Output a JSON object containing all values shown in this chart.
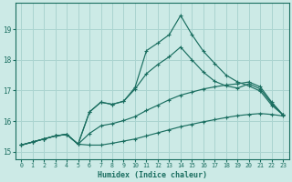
{
  "xlabel": "Humidex (Indice chaleur)",
  "xlim": [
    -0.5,
    23.5
  ],
  "ylim": [
    14.75,
    19.85
  ],
  "yticks": [
    15,
    16,
    17,
    18,
    19
  ],
  "xticks": [
    0,
    1,
    2,
    3,
    4,
    5,
    6,
    7,
    8,
    9,
    10,
    11,
    12,
    13,
    14,
    15,
    16,
    17,
    18,
    19,
    20,
    21,
    22,
    23
  ],
  "bg_color": "#cceae6",
  "grid_color": "#aad4d0",
  "line_color": "#1a6e60",
  "line1_y": [
    15.22,
    15.32,
    15.42,
    15.52,
    15.57,
    15.25,
    15.22,
    15.22,
    15.28,
    15.35,
    15.42,
    15.52,
    15.62,
    15.72,
    15.82,
    15.9,
    15.98,
    16.05,
    16.12,
    16.18,
    16.22,
    16.25,
    16.22,
    16.17
  ],
  "line2_y": [
    15.22,
    15.32,
    15.42,
    15.52,
    15.57,
    15.25,
    15.6,
    15.85,
    15.92,
    16.02,
    16.15,
    16.35,
    16.52,
    16.7,
    16.85,
    16.95,
    17.05,
    17.12,
    17.18,
    17.22,
    17.28,
    17.12,
    16.62,
    16.2
  ],
  "line3_y": [
    15.22,
    15.32,
    15.42,
    15.52,
    15.57,
    15.25,
    16.3,
    16.62,
    16.55,
    16.65,
    17.05,
    17.55,
    17.85,
    18.1,
    18.42,
    18.0,
    17.6,
    17.3,
    17.15,
    17.08,
    17.22,
    17.05,
    16.58,
    16.2
  ],
  "line4_y": [
    15.22,
    15.32,
    15.42,
    15.52,
    15.57,
    15.25,
    16.3,
    16.62,
    16.55,
    16.65,
    17.1,
    18.3,
    18.55,
    18.82,
    19.45,
    18.82,
    18.28,
    17.88,
    17.5,
    17.28,
    17.15,
    16.98,
    16.52,
    16.2
  ]
}
